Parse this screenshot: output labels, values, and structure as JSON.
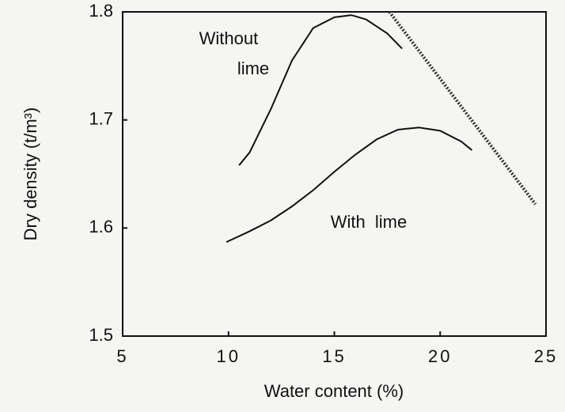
{
  "chart_data": {
    "type": "line",
    "x_label": "Water content (%)",
    "y_label": "Dry density (t/m³)",
    "xlim": [
      5,
      25
    ],
    "ylim": [
      1.5,
      1.8
    ],
    "xticks": [
      5,
      10,
      15,
      20,
      25
    ],
    "yticks": [
      1.5,
      1.6,
      1.7,
      1.8
    ],
    "series": [
      {
        "name": "Without lime",
        "color": "#111111",
        "x": [
          10.5,
          11,
          12,
          13,
          14,
          15,
          15.8,
          16.5,
          17.5,
          18.2
        ],
        "values": [
          1.658,
          1.67,
          1.71,
          1.755,
          1.785,
          1.795,
          1.797,
          1.793,
          1.78,
          1.766
        ]
      },
      {
        "name": "With lime",
        "color": "#111111",
        "x": [
          9.9,
          11,
          12,
          13,
          14,
          15,
          16,
          17,
          18,
          19,
          20,
          21,
          21.5
        ],
        "values": [
          1.587,
          1.597,
          1.607,
          1.62,
          1.635,
          1.652,
          1.668,
          1.682,
          1.691,
          1.693,
          1.69,
          1.68,
          1.672
        ]
      },
      {
        "color": "#333333",
        "dashed": true,
        "x": [
          17.6,
          24.5
        ],
        "values": [
          1.8,
          1.622
        ]
      }
    ]
  }
}
